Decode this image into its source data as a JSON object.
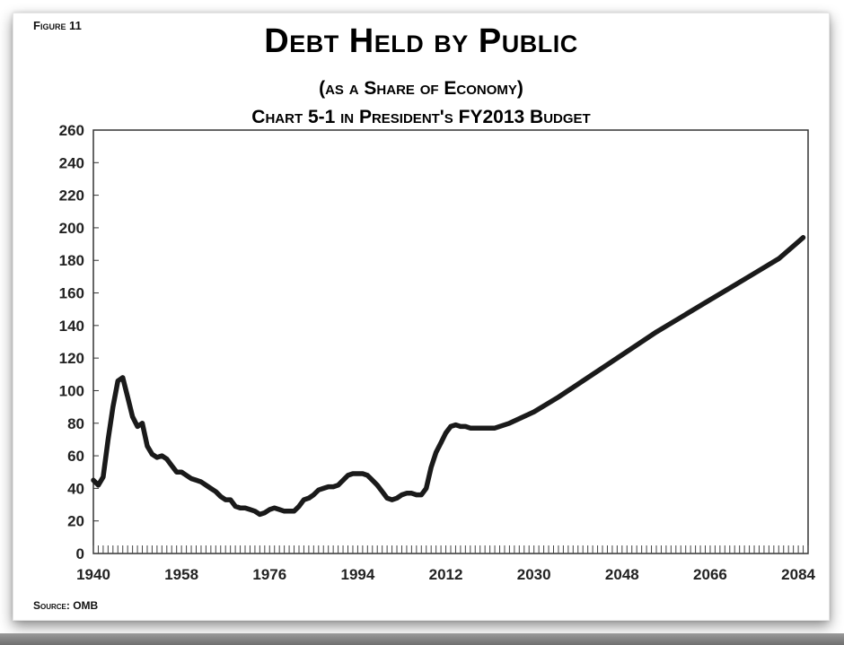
{
  "figure_label": "Figure 11",
  "source": "Source: OMB",
  "chart_data": {
    "type": "line",
    "title": "Debt Held by Public",
    "subtitle": "(as a Share of Economy)",
    "subtitle2": "Chart 5-1 in President's FY2013 Budget",
    "xlabel": "",
    "ylabel": "",
    "xlim": [
      1940,
      2086
    ],
    "ylim": [
      0,
      260
    ],
    "x_ticks": [
      1940,
      1958,
      1976,
      1994,
      2012,
      2030,
      2048,
      2066,
      2084
    ],
    "y_ticks": [
      0,
      20,
      40,
      60,
      80,
      100,
      120,
      140,
      160,
      180,
      200,
      220,
      240,
      260
    ],
    "grid": false,
    "line_color": "#1a1a1a",
    "series": [
      {
        "x": [
          1940,
          1941,
          1942,
          1943,
          1944,
          1945,
          1946,
          1947,
          1948,
          1949,
          1950,
          1951,
          1952,
          1953,
          1954,
          1955,
          1956,
          1957,
          1958,
          1959,
          1960,
          1961,
          1962,
          1963,
          1964,
          1965,
          1966,
          1967,
          1968,
          1969,
          1970,
          1971,
          1972,
          1973,
          1974,
          1975,
          1976,
          1977,
          1978,
          1979,
          1980,
          1981,
          1982,
          1983,
          1984,
          1985,
          1986,
          1987,
          1988,
          1989,
          1990,
          1991,
          1992,
          1993,
          1994,
          1995,
          1996,
          1997,
          1998,
          1999,
          2000,
          2001,
          2002,
          2003,
          2004,
          2005,
          2006,
          2007,
          2008,
          2009,
          2010,
          2011,
          2012,
          2013,
          2014,
          2015,
          2016,
          2017,
          2018,
          2019,
          2020,
          2022,
          2025,
          2030,
          2035,
          2040,
          2045,
          2050,
          2055,
          2060,
          2065,
          2070,
          2075,
          2080,
          2085
        ],
        "values": [
          45,
          42,
          47,
          70,
          90,
          106,
          108,
          96,
          84,
          78,
          80,
          66,
          61,
          59,
          60,
          58,
          54,
          50,
          50,
          48,
          46,
          45,
          44,
          42,
          40,
          38,
          35,
          33,
          33,
          29,
          28,
          28,
          27,
          26,
          24,
          25,
          27,
          28,
          27,
          26,
          26,
          26,
          29,
          33,
          34,
          36,
          39,
          40,
          41,
          41,
          42,
          45,
          48,
          49,
          49,
          49,
          48,
          45,
          42,
          38,
          34,
          33,
          34,
          36,
          37,
          37,
          36,
          36,
          40,
          53,
          62,
          68,
          74,
          78,
          79,
          78,
          78,
          77,
          77,
          77,
          77,
          77,
          80,
          87,
          96,
          106,
          116,
          126,
          136,
          145,
          154,
          163,
          172,
          181,
          194
        ]
      }
    ]
  }
}
